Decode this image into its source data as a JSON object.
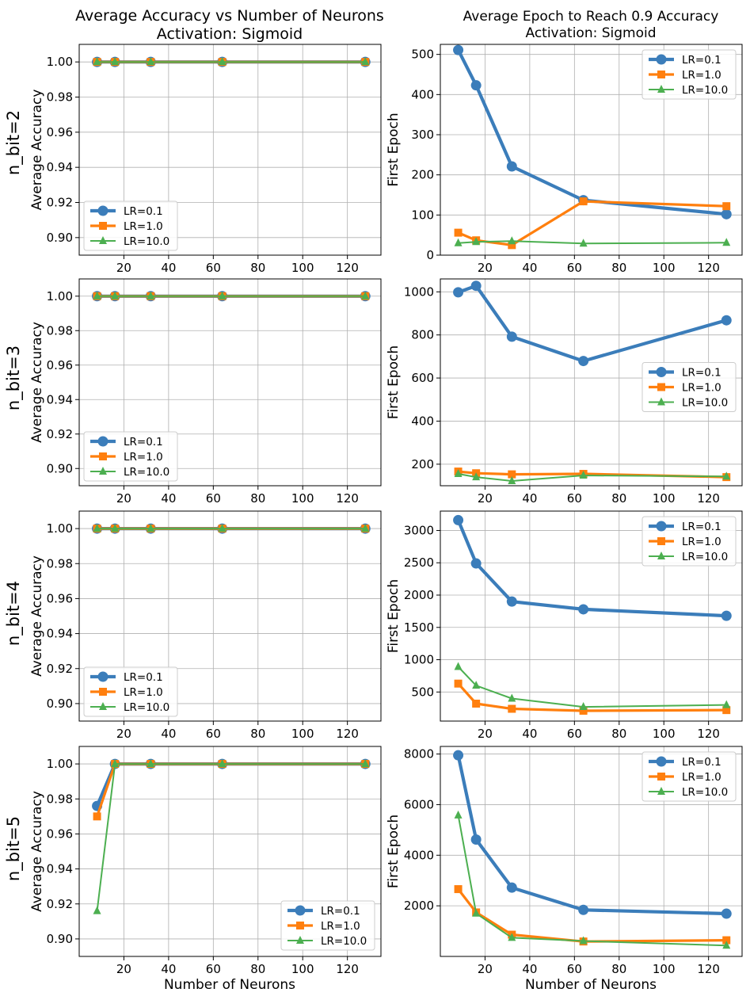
{
  "figure": {
    "titles": {
      "left": [
        "Average Accuracy vs Number of Neurons",
        "Activation: Sigmoid"
      ],
      "right": [
        "Average Epoch to Reach 0.9 Accuracy",
        "Activation: Sigmoid"
      ]
    },
    "row_labels": [
      "n_bit=2",
      "n_bit=3",
      "n_bit=4",
      "n_bit=5"
    ],
    "xlabel": "Number of Neurons",
    "colors": {
      "lr01": "#3b7dba",
      "lr1": "#ff7f0e",
      "lr10": "#4caf50"
    }
  },
  "chart_data": [
    {
      "id": "acc-nbit2",
      "type": "line",
      "row": 0,
      "col": 0,
      "ylabel": "Average Accuracy",
      "xlabel": "",
      "x": [
        8,
        16,
        32,
        64,
        128
      ],
      "xlim": [
        0,
        135
      ],
      "xticks": [
        20,
        40,
        60,
        80,
        100,
        120
      ],
      "ylim": [
        0.89,
        1.01
      ],
      "yticks": [
        0.9,
        0.92,
        0.94,
        0.96,
        0.98,
        1.0
      ],
      "ytick_labels": [
        "0.90",
        "0.92",
        "0.94",
        "0.96",
        "0.98",
        "1.00"
      ],
      "legend": "lower-left",
      "grid": true,
      "series": [
        {
          "name": "LR=0.1",
          "values": [
            1.0,
            1.0,
            1.0,
            1.0,
            1.0
          ]
        },
        {
          "name": "LR=1.0",
          "values": [
            1.0,
            1.0,
            1.0,
            1.0,
            1.0
          ]
        },
        {
          "name": "LR=10.0",
          "values": [
            1.0,
            1.0,
            1.0,
            1.0,
            1.0
          ]
        }
      ]
    },
    {
      "id": "epoch-nbit2",
      "type": "line",
      "row": 0,
      "col": 1,
      "ylabel": "First Epoch",
      "xlabel": "",
      "x": [
        8,
        16,
        32,
        64,
        128
      ],
      "xlim": [
        0,
        135
      ],
      "xticks": [
        20,
        40,
        60,
        80,
        100,
        120
      ],
      "ylim": [
        0,
        525
      ],
      "yticks": [
        0,
        100,
        200,
        300,
        400,
        500
      ],
      "ytick_labels": [
        "0",
        "100",
        "200",
        "300",
        "400",
        "500"
      ],
      "legend": "top-right",
      "grid": true,
      "series": [
        {
          "name": "LR=0.1",
          "values": [
            511,
            423,
            221,
            137,
            102
          ]
        },
        {
          "name": "LR=1.0",
          "values": [
            56,
            37,
            25,
            134,
            122
          ]
        },
        {
          "name": "LR=10.0",
          "values": [
            30,
            33,
            35,
            29,
            31
          ]
        }
      ]
    },
    {
      "id": "acc-nbit3",
      "type": "line",
      "row": 1,
      "col": 0,
      "ylabel": "Average Accuracy",
      "xlabel": "",
      "x": [
        8,
        16,
        32,
        64,
        128
      ],
      "xlim": [
        0,
        135
      ],
      "xticks": [
        20,
        40,
        60,
        80,
        100,
        120
      ],
      "ylim": [
        0.89,
        1.01
      ],
      "yticks": [
        0.9,
        0.92,
        0.94,
        0.96,
        0.98,
        1.0
      ],
      "ytick_labels": [
        "0.90",
        "0.92",
        "0.94",
        "0.96",
        "0.98",
        "1.00"
      ],
      "legend": "lower-left",
      "grid": true,
      "series": [
        {
          "name": "LR=0.1",
          "values": [
            1.0,
            1.0,
            1.0,
            1.0,
            1.0
          ]
        },
        {
          "name": "LR=1.0",
          "values": [
            1.0,
            1.0,
            1.0,
            1.0,
            1.0
          ]
        },
        {
          "name": "LR=10.0",
          "values": [
            1.0,
            1.0,
            1.0,
            1.0,
            1.0
          ]
        }
      ]
    },
    {
      "id": "epoch-nbit3",
      "type": "line",
      "row": 1,
      "col": 1,
      "ylabel": "First Epoch",
      "xlabel": "",
      "x": [
        8,
        16,
        32,
        64,
        128
      ],
      "xlim": [
        0,
        135
      ],
      "xticks": [
        20,
        40,
        60,
        80,
        100,
        120
      ],
      "ylim": [
        100,
        1060
      ],
      "yticks": [
        200,
        400,
        600,
        800,
        1000
      ],
      "ytick_labels": [
        "200",
        "400",
        "600",
        "800",
        "1000"
      ],
      "legend": "center-right",
      "grid": true,
      "series": [
        {
          "name": "LR=0.1",
          "values": [
            998,
            1028,
            792,
            679,
            868
          ]
        },
        {
          "name": "LR=1.0",
          "values": [
            166,
            158,
            153,
            155,
            140
          ]
        },
        {
          "name": "LR=10.0",
          "values": [
            155,
            140,
            122,
            148,
            143
          ]
        }
      ]
    },
    {
      "id": "acc-nbit4",
      "type": "line",
      "row": 2,
      "col": 0,
      "ylabel": "Average Accuracy",
      "xlabel": "",
      "x": [
        8,
        16,
        32,
        64,
        128
      ],
      "xlim": [
        0,
        135
      ],
      "xticks": [
        20,
        40,
        60,
        80,
        100,
        120
      ],
      "ylim": [
        0.89,
        1.01
      ],
      "yticks": [
        0.9,
        0.92,
        0.94,
        0.96,
        0.98,
        1.0
      ],
      "ytick_labels": [
        "0.90",
        "0.92",
        "0.94",
        "0.96",
        "0.98",
        "1.00"
      ],
      "legend": "lower-left",
      "grid": true,
      "series": [
        {
          "name": "LR=0.1",
          "values": [
            1.0,
            1.0,
            1.0,
            1.0,
            1.0
          ]
        },
        {
          "name": "LR=1.0",
          "values": [
            1.0,
            1.0,
            1.0,
            1.0,
            1.0
          ]
        },
        {
          "name": "LR=10.0",
          "values": [
            1.0,
            1.0,
            1.0,
            1.0,
            1.0
          ]
        }
      ]
    },
    {
      "id": "epoch-nbit4",
      "type": "line",
      "row": 2,
      "col": 1,
      "ylabel": "First Epoch",
      "xlabel": "",
      "x": [
        8,
        16,
        32,
        64,
        128
      ],
      "xlim": [
        0,
        135
      ],
      "xticks": [
        20,
        40,
        60,
        80,
        100,
        120
      ],
      "ylim": [
        50,
        3300
      ],
      "yticks": [
        500,
        1000,
        1500,
        2000,
        2500,
        3000
      ],
      "ytick_labels": [
        "500",
        "1000",
        "1500",
        "2000",
        "2500",
        "3000"
      ],
      "legend": "top-right",
      "grid": true,
      "series": [
        {
          "name": "LR=0.1",
          "values": [
            3160,
            2490,
            1900,
            1780,
            1680
          ]
        },
        {
          "name": "LR=1.0",
          "values": [
            630,
            320,
            240,
            210,
            220
          ]
        },
        {
          "name": "LR=10.0",
          "values": [
            890,
            600,
            400,
            270,
            300
          ]
        }
      ]
    },
    {
      "id": "acc-nbit5",
      "type": "line",
      "row": 3,
      "col": 0,
      "ylabel": "Average Accuracy",
      "xlabel": "Number of Neurons",
      "x": [
        8,
        16,
        32,
        64,
        128
      ],
      "xlim": [
        0,
        135
      ],
      "xticks": [
        20,
        40,
        60,
        80,
        100,
        120
      ],
      "ylim": [
        0.89,
        1.01
      ],
      "yticks": [
        0.9,
        0.92,
        0.94,
        0.96,
        0.98,
        1.0
      ],
      "ytick_labels": [
        "0.90",
        "0.92",
        "0.94",
        "0.96",
        "0.98",
        "1.00"
      ],
      "legend": "lower-right",
      "grid": true,
      "series": [
        {
          "name": "LR=0.1",
          "values": [
            0.976,
            1.0,
            1.0,
            1.0,
            1.0
          ]
        },
        {
          "name": "LR=1.0",
          "values": [
            0.97,
            1.0,
            1.0,
            1.0,
            1.0
          ]
        },
        {
          "name": "LR=10.0",
          "values": [
            0.916,
            1.0,
            1.0,
            1.0,
            1.0
          ]
        }
      ]
    },
    {
      "id": "epoch-nbit5",
      "type": "line",
      "row": 3,
      "col": 1,
      "ylabel": "First Epoch",
      "xlabel": "Number of Neurons",
      "x": [
        8,
        16,
        32,
        64,
        128
      ],
      "xlim": [
        0,
        135
      ],
      "xticks": [
        20,
        40,
        60,
        80,
        100,
        120
      ],
      "ylim": [
        0,
        8300
      ],
      "yticks": [
        2000,
        4000,
        6000,
        8000
      ],
      "ytick_labels": [
        "2000",
        "4000",
        "6000",
        "8000"
      ],
      "legend": "top-right",
      "grid": true,
      "series": [
        {
          "name": "LR=0.1",
          "values": [
            7950,
            4620,
            2720,
            1840,
            1690
          ]
        },
        {
          "name": "LR=1.0",
          "values": [
            2660,
            1740,
            860,
            590,
            640
          ]
        },
        {
          "name": "LR=10.0",
          "values": [
            5580,
            1700,
            740,
            610,
            430
          ]
        }
      ]
    }
  ]
}
